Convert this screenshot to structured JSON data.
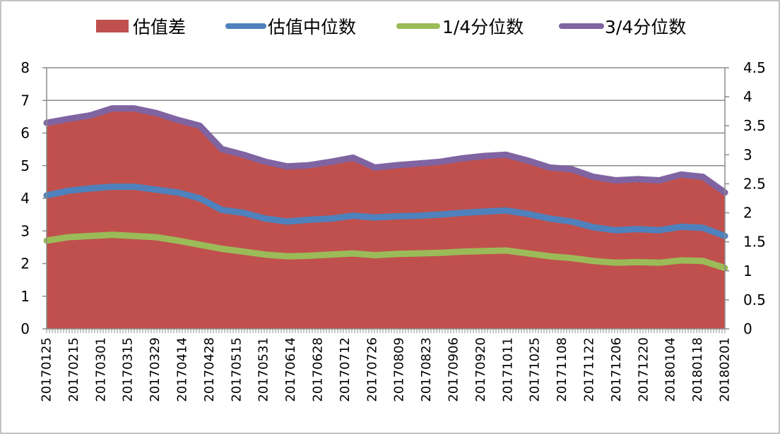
{
  "chart_data": {
    "type": "area",
    "legend": {
      "placement": "top",
      "items": [
        {
          "name": "估值差",
          "color": "#C0504D",
          "kind": "area"
        },
        {
          "name": "估值中位数",
          "color": "#4F81BD",
          "kind": "line"
        },
        {
          "name": "1/4分位数",
          "color": "#9BBB59",
          "kind": "line"
        },
        {
          "name": "3/4分位数",
          "color": "#8064A2",
          "kind": "line"
        }
      ]
    },
    "grid": true,
    "y_left": {
      "min": 0,
      "max": 8,
      "ticks": [
        "0",
        "1",
        "2",
        "3",
        "4",
        "5",
        "6",
        "7",
        "8"
      ]
    },
    "y_right": {
      "min": 0,
      "max": 4.5,
      "ticks": [
        "0",
        "0.5",
        "1",
        "1.5",
        "2",
        "2.5",
        "3",
        "3.5",
        "4",
        "4.5"
      ]
    },
    "x_tick_labels": [
      "20170125",
      "20170215",
      "20170301",
      "20170315",
      "20170329",
      "20170414",
      "20170428",
      "20170515",
      "20170531",
      "20170614",
      "20170628",
      "20170712",
      "20170726",
      "20170809",
      "20170823",
      "20170906",
      "20170920",
      "20171011",
      "20171025",
      "20171108",
      "20171122",
      "20171206",
      "20171220",
      "20180104",
      "20180118",
      "20180201"
    ],
    "series": [
      {
        "name": "估值差",
        "axis": "left",
        "values": [
          6.2,
          6.45,
          6.5,
          6.75,
          6.75,
          6.7,
          6.35,
          6.2,
          5.55,
          5.3,
          5.05,
          4.9,
          4.95,
          5.1,
          5.25,
          4.85,
          4.95,
          5.0,
          5.05,
          5.2,
          5.25,
          5.3,
          5.1,
          4.85,
          4.8,
          4.6,
          4.5,
          4.55,
          4.5,
          4.65,
          4.6,
          4.1
        ]
      },
      {
        "name": "估值中位数",
        "axis": "right",
        "values": [
          2.3,
          2.38,
          2.42,
          2.45,
          2.45,
          2.4,
          2.35,
          2.25,
          2.05,
          2.0,
          1.9,
          1.85,
          1.88,
          1.9,
          1.95,
          1.92,
          1.94,
          1.95,
          1.97,
          2.0,
          2.02,
          2.04,
          1.98,
          1.9,
          1.85,
          1.75,
          1.7,
          1.72,
          1.7,
          1.76,
          1.74,
          1.6
        ]
      },
      {
        "name": "1/4分位数",
        "axis": "right",
        "values": [
          1.52,
          1.58,
          1.6,
          1.62,
          1.6,
          1.58,
          1.52,
          1.45,
          1.38,
          1.33,
          1.28,
          1.25,
          1.26,
          1.28,
          1.3,
          1.27,
          1.29,
          1.3,
          1.31,
          1.33,
          1.34,
          1.35,
          1.3,
          1.25,
          1.22,
          1.17,
          1.14,
          1.15,
          1.14,
          1.18,
          1.17,
          1.05
        ]
      },
      {
        "name": "3/4分位数",
        "axis": "right",
        "values": [
          3.55,
          3.62,
          3.68,
          3.8,
          3.8,
          3.72,
          3.6,
          3.5,
          3.1,
          3.0,
          2.88,
          2.8,
          2.82,
          2.88,
          2.95,
          2.78,
          2.82,
          2.85,
          2.88,
          2.94,
          2.98,
          3.0,
          2.9,
          2.78,
          2.75,
          2.62,
          2.56,
          2.58,
          2.56,
          2.66,
          2.62,
          2.35
        ]
      }
    ]
  }
}
